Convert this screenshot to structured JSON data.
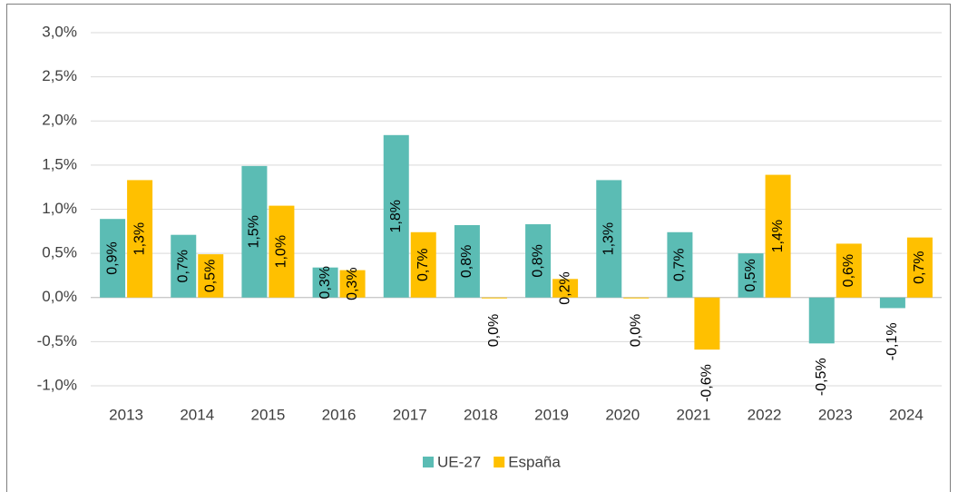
{
  "chart_data": {
    "type": "bar",
    "categories": [
      "2013",
      "2014",
      "2015",
      "2016",
      "2017",
      "2018",
      "2019",
      "2020",
      "2021",
      "2022",
      "2023",
      "2024"
    ],
    "series": [
      {
        "name": "UE-27",
        "color": "#5bbcb4",
        "values": [
          0.89,
          0.71,
          1.49,
          0.34,
          1.84,
          0.82,
          0.83,
          1.33,
          0.74,
          0.5,
          -0.52,
          -0.12
        ],
        "value_labels": [
          "0,9%",
          "0,7%",
          "1,5%",
          "0,3%",
          "1,8%",
          "0,8%",
          "0,8%",
          "1,3%",
          "0,7%",
          "0,5%",
          "-0,5%",
          "-0,1%"
        ]
      },
      {
        "name": "España",
        "color": "#ffc000",
        "values": [
          1.33,
          0.49,
          1.04,
          0.31,
          0.74,
          -0.01,
          0.21,
          -0.01,
          -0.59,
          1.39,
          0.61,
          0.68
        ],
        "value_labels": [
          "1,3%",
          "0,5%",
          "1,0%",
          "0,3%",
          "0,7%",
          "0,0%",
          "0,2%",
          "0,0%",
          "-0,6%",
          "1,4%",
          "0,6%",
          "0,7%"
        ]
      }
    ],
    "ylim": [
      -1.0,
      3.0
    ],
    "yticks": [
      {
        "value": -1.0,
        "label": "-1,0%"
      },
      {
        "value": -0.5,
        "label": "-0,5%"
      },
      {
        "value": 0,
        "label": "0,0%"
      },
      {
        "value": 0.5,
        "label": "0,5%"
      },
      {
        "value": 1.0,
        "label": "1,0%"
      },
      {
        "value": 1.5,
        "label": "1,5%"
      },
      {
        "value": 2.0,
        "label": "2,0%"
      },
      {
        "value": 2.5,
        "label": "2,5%"
      },
      {
        "value": 3.0,
        "label": "3,0%"
      }
    ],
    "grid": true,
    "legend": "bottom"
  }
}
